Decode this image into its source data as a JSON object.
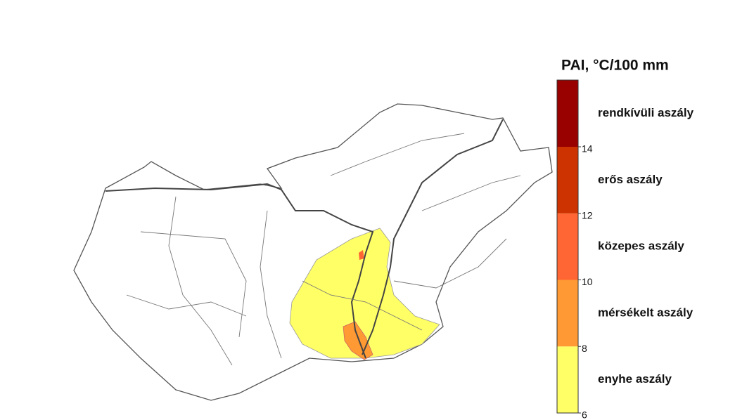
{
  "legend": {
    "title": "PAI, °C/100 mm",
    "ticks": [
      6,
      8,
      10,
      12,
      14
    ],
    "classes": [
      {
        "label": "enyhe aszály",
        "color": "#ffff66"
      },
      {
        "label": "mérsékelt aszály",
        "color": "#ff9933"
      },
      {
        "label": "közepes aszály",
        "color": "#ff6633"
      },
      {
        "label": "erős aszály",
        "color": "#cc3300"
      },
      {
        "label": "rendkívüli aszály",
        "color": "#990000"
      }
    ]
  }
}
